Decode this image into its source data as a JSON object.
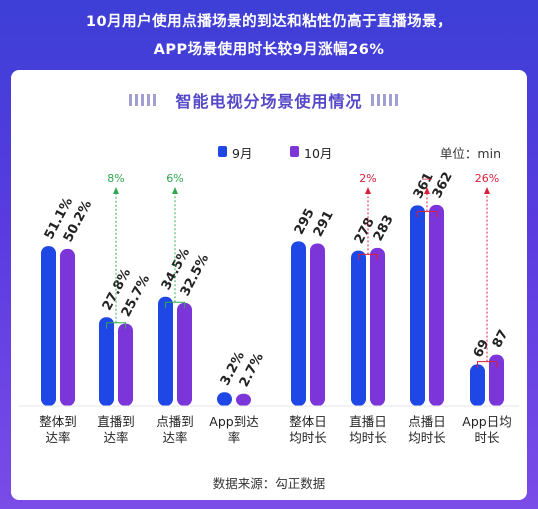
{
  "header": {
    "line1": "10月用户使用点播场景的到达和粘性仍高于直播场景，",
    "line2": "APP场景使用时长较9月涨幅26%"
  },
  "card_title": "智能电视分场景使用情况",
  "legend": {
    "s1": "9月",
    "s2": "10月"
  },
  "unit": "单位：min",
  "source": "数据来源：勾正数据",
  "colors": {
    "s1": "#1f47e6",
    "s2": "#7b35d8",
    "green": "#2fa84f",
    "red": "#d81e3a"
  },
  "chart_data": {
    "type": "bar",
    "series": [
      {
        "name": "9月",
        "labels": [
          "51.1%",
          "27.8%",
          "34.5%",
          "3.2%",
          "295",
          "278",
          "361",
          "69"
        ]
      },
      {
        "name": "10月",
        "labels": [
          "50.2%",
          "25.7%",
          "32.5%",
          "2.7%",
          "291",
          "283",
          "362",
          "87"
        ]
      }
    ],
    "categories": [
      [
        "整体到",
        "达率"
      ],
      [
        "直播到",
        "达率"
      ],
      [
        "点播到",
        "达率"
      ],
      [
        "App到达",
        "率"
      ],
      [
        "整体日",
        "均时长"
      ],
      [
        "直播日",
        "均时长"
      ],
      [
        "点播日",
        "均时长"
      ],
      [
        "App日均",
        "时长"
      ]
    ],
    "groups": [
      {
        "unit": "percent",
        "values": [
          [
            51.1,
            50.2
          ],
          [
            27.8,
            25.7
          ],
          [
            34.5,
            32.5
          ],
          [
            3.2,
            2.7
          ]
        ],
        "ymax": 80
      },
      {
        "unit": "min",
        "values": [
          [
            295,
            291
          ],
          [
            278,
            283
          ],
          [
            361,
            362
          ],
          [
            69,
            87
          ]
        ],
        "ymax": 448
      }
    ],
    "changes": [
      {
        "index": 1,
        "text": "8%",
        "color": "green"
      },
      {
        "index": 2,
        "text": "6%",
        "color": "green"
      },
      {
        "index": 5,
        "text": "2%",
        "color": "red"
      },
      {
        "index": 6,
        "text": "—",
        "color": "red"
      },
      {
        "index": 7,
        "text": "26%",
        "color": "red"
      }
    ]
  }
}
